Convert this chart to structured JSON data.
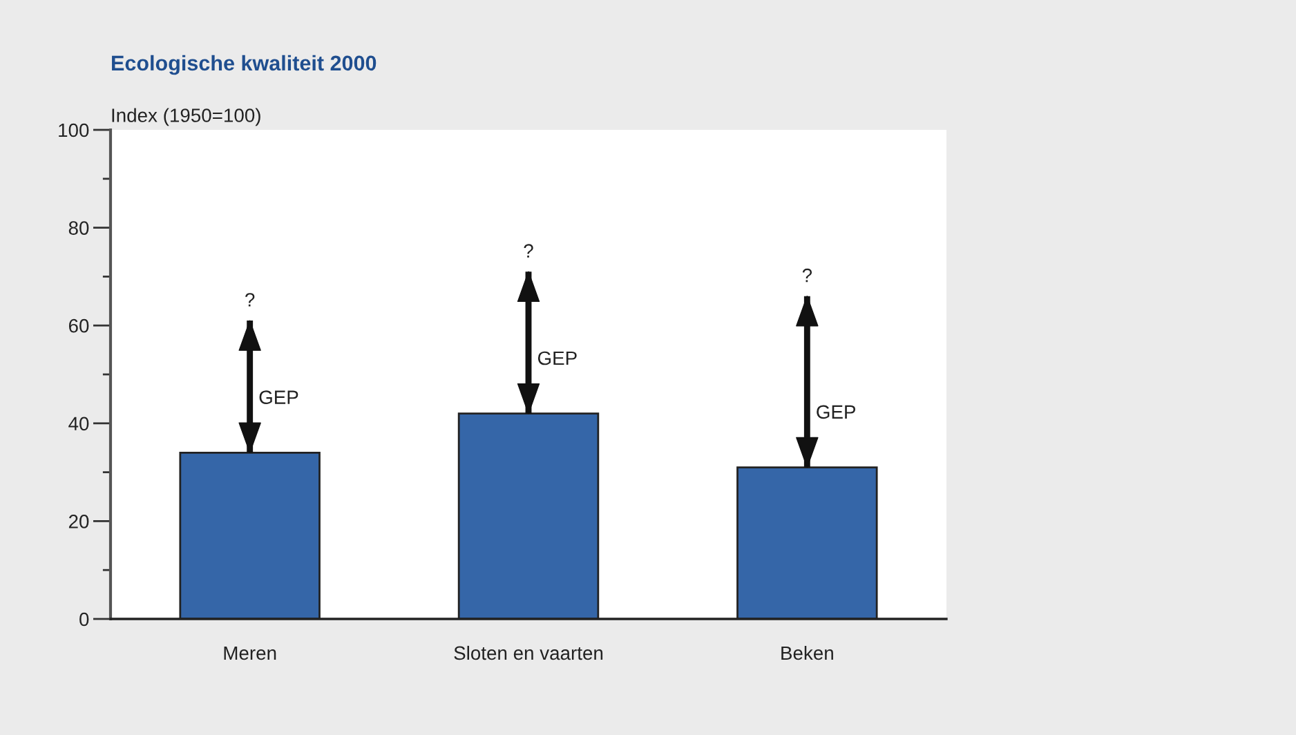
{
  "chart_data": {
    "type": "bar",
    "title": "Ecologische kwaliteit 2000",
    "ylabel": "Index (1950=100)",
    "categories": [
      "Meren",
      "Sloten en vaarten",
      "Beken"
    ],
    "values": [
      34,
      42,
      31
    ],
    "color": "#3566a8",
    "errors": [
      [
        34,
        61
      ],
      [
        42,
        71
      ],
      [
        31,
        66
      ]
    ],
    "ylim": [
      0,
      100
    ],
    "yticks": [
      0,
      {
        "value": 10,
        "label": null
      },
      20,
      {
        "value": 30,
        "label": null
      },
      40,
      {
        "value": 50,
        "label": null
      },
      60,
      {
        "value": 70,
        "label": null
      },
      80,
      {
        "value": 90,
        "label": null
      },
      100
    ],
    "annotations": [
      "?",
      "?",
      "?",
      "GEP",
      "GEP",
      "GEP"
    ]
  }
}
